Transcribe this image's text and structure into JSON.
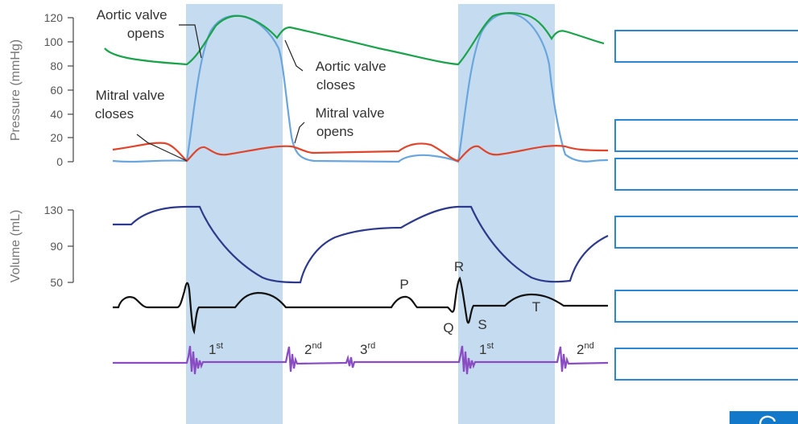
{
  "labels": {
    "aortic_opens": [
      "Aortic valve",
      "opens"
    ],
    "aortic_closes": [
      "Aortic valve",
      "closes"
    ],
    "mitral_closes": [
      "Mitral valve",
      "closes"
    ],
    "mitral_opens": [
      "Mitral valve",
      "opens"
    ]
  },
  "axes": {
    "pressure_title": "Pressure (mmHg)",
    "pressure_ticks": [
      "120",
      "100",
      "80",
      "60",
      "40",
      "20",
      "0"
    ],
    "volume_title": "Volume (mL)",
    "volume_ticks": [
      "130",
      "90",
      "50"
    ]
  },
  "ecg_labels": {
    "P": "P",
    "Q": "Q",
    "R": "R",
    "S": "S",
    "T": "T"
  },
  "heart_sounds": [
    {
      "num": "1",
      "sup": "st"
    },
    {
      "num": "2",
      "sup": "nd"
    },
    {
      "num": "3",
      "sup": "rd"
    },
    {
      "num": "1",
      "sup": "st"
    },
    {
      "num": "2",
      "sup": "nd"
    }
  ],
  "colors": {
    "aortic_pressure": "#1aa34a",
    "ventricular_pressure": "#6aa6dd",
    "atrial_pressure": "#e0452b",
    "volume": "#2d3a8c",
    "ecg": "#111111",
    "phonocardiogram": "#8a4cc2",
    "systole_band": "#c5dcf0",
    "answer_box_border": "#2b86d6"
  },
  "answer_boxes": [
    "",
    "",
    "",
    "",
    "",
    ""
  ]
}
